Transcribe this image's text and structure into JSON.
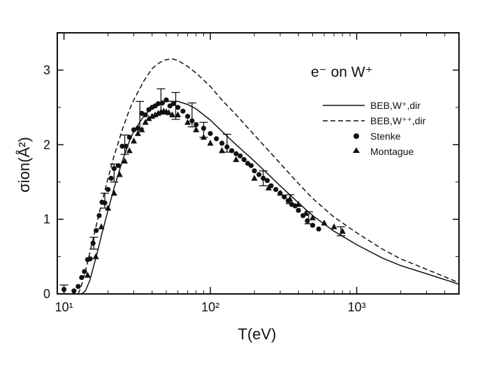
{
  "chart_data": {
    "type": "scatter",
    "title": "",
    "annotation": "e⁻ on W⁺",
    "xlabel": "T(eV)",
    "ylabel": "σion(Å²)",
    "xscale": "log",
    "xlim": [
      9,
      5000
    ],
    "ylim": [
      0,
      3.5
    ],
    "x_ticks": [
      {
        "value": 10,
        "label": "10¹"
      },
      {
        "value": 100,
        "label": "10²"
      },
      {
        "value": 1000,
        "label": "10³"
      }
    ],
    "y_ticks": [
      {
        "value": 0,
        "label": "0"
      },
      {
        "value": 1,
        "label": "1"
      },
      {
        "value": 2,
        "label": "2"
      },
      {
        "value": 3,
        "label": "3"
      }
    ],
    "legend_position": "top-right",
    "series": [
      {
        "name": "BEB,W⁺,dir",
        "style": "solid-line",
        "x": [
          13.2,
          14,
          15,
          16,
          17,
          18,
          20,
          22,
          25,
          28,
          30,
          35,
          40,
          45,
          50,
          60,
          70,
          80,
          100,
          120,
          150,
          200,
          300,
          400,
          500,
          700,
          1000,
          1500,
          2000,
          3000,
          5000
        ],
        "y": [
          0,
          0.04,
          0.18,
          0.38,
          0.58,
          0.78,
          1.12,
          1.42,
          1.78,
          2.05,
          2.18,
          2.38,
          2.5,
          2.56,
          2.58,
          2.58,
          2.54,
          2.48,
          2.33,
          2.18,
          2.0,
          1.78,
          1.45,
          1.22,
          1.05,
          0.84,
          0.66,
          0.48,
          0.38,
          0.27,
          0.13
        ]
      },
      {
        "name": "BEB,W⁺⁺,dir",
        "style": "dashed-line",
        "x": [
          12.5,
          13,
          14,
          15,
          16,
          17,
          18,
          20,
          22,
          25,
          28,
          30,
          35,
          40,
          45,
          50,
          55,
          60,
          70,
          80,
          100,
          120,
          150,
          200,
          300,
          400,
          500,
          700,
          1000,
          1500,
          2000,
          3000,
          5000
        ],
        "y": [
          0,
          0.08,
          0.3,
          0.55,
          0.78,
          1.0,
          1.2,
          1.55,
          1.85,
          2.2,
          2.47,
          2.6,
          2.85,
          3.02,
          3.1,
          3.14,
          3.15,
          3.13,
          3.05,
          2.96,
          2.78,
          2.6,
          2.4,
          2.13,
          1.75,
          1.48,
          1.28,
          1.03,
          0.82,
          0.6,
          0.47,
          0.33,
          0.15
        ]
      },
      {
        "name": "Stenke",
        "style": "circle-markers",
        "x": [
          10,
          11.7,
          12.5,
          13.2,
          13.8,
          14.5,
          15.1,
          15.8,
          16.6,
          17.4,
          18.2,
          19,
          20,
          21,
          22,
          23.5,
          25,
          26.5,
          28,
          30,
          32,
          34,
          36,
          38,
          40,
          42,
          44,
          47,
          50,
          53,
          56,
          60,
          65,
          70,
          75,
          80,
          90,
          100,
          110,
          120,
          130,
          140,
          150,
          160,
          170,
          180,
          190,
          200,
          215,
          230,
          245,
          260,
          280,
          300,
          320,
          340,
          360,
          380,
          400,
          430,
          460,
          500,
          550
        ],
        "y": [
          0.06,
          0.04,
          0.1,
          0.22,
          0.3,
          0.46,
          0.47,
          0.68,
          0.85,
          1.05,
          1.23,
          1.22,
          1.4,
          1.55,
          1.68,
          1.72,
          1.98,
          1.98,
          2.1,
          2.2,
          2.22,
          2.42,
          2.4,
          2.47,
          2.5,
          2.52,
          2.55,
          2.56,
          2.6,
          2.52,
          2.55,
          2.5,
          2.45,
          2.38,
          2.32,
          2.27,
          2.22,
          2.15,
          2.08,
          2.02,
          1.97,
          1.92,
          1.88,
          1.85,
          1.8,
          1.75,
          1.72,
          1.65,
          1.6,
          1.55,
          1.52,
          1.45,
          1.4,
          1.35,
          1.3,
          1.25,
          1.2,
          1.18,
          1.12,
          1.05,
          0.98,
          0.92,
          0.87
        ]
      },
      {
        "name": "Montague",
        "style": "triangle-markers",
        "x": [
          14.5,
          16.5,
          18,
          20,
          22,
          24,
          26,
          28,
          30,
          32,
          34,
          36,
          38,
          40,
          42,
          44,
          46,
          48,
          50,
          52,
          55,
          60,
          70,
          80,
          90,
          100,
          120,
          150,
          200,
          250,
          300,
          350,
          400,
          450,
          500,
          600,
          700,
          800
        ],
        "y": [
          0.25,
          0.5,
          0.9,
          1.15,
          1.35,
          1.6,
          1.78,
          1.92,
          2.05,
          2.15,
          2.2,
          2.3,
          2.35,
          2.38,
          2.4,
          2.42,
          2.44,
          2.45,
          2.44,
          2.43,
          2.4,
          2.4,
          2.3,
          2.2,
          2.1,
          2.02,
          1.92,
          1.8,
          1.55,
          1.42,
          1.35,
          1.27,
          1.2,
          1.08,
          1.02,
          0.95,
          0.9,
          0.84
        ]
      }
    ],
    "error_bars": [
      {
        "x": 10,
        "y": 0.06,
        "err": 0.06
      },
      {
        "x": 16,
        "y": 0.68,
        "err": 0.08
      },
      {
        "x": 19,
        "y": 1.25,
        "err": 0.1
      },
      {
        "x": 22,
        "y": 1.62,
        "err": 0.12
      },
      {
        "x": 26,
        "y": 2.0,
        "err": 0.13
      },
      {
        "x": 33,
        "y": 2.4,
        "err": 0.18
      },
      {
        "x": 46,
        "y": 2.58,
        "err": 0.17
      },
      {
        "x": 58,
        "y": 2.52,
        "err": 0.18
      },
      {
        "x": 75,
        "y": 2.4,
        "err": 0.16
      },
      {
        "x": 90,
        "y": 2.2,
        "err": 0.1
      },
      {
        "x": 130,
        "y": 2.02,
        "err": 0.12
      },
      {
        "x": 230,
        "y": 1.55,
        "err": 0.1
      },
      {
        "x": 350,
        "y": 1.27,
        "err": 0.06
      },
      {
        "x": 470,
        "y": 1.02,
        "err": 0.08
      },
      {
        "x": 780,
        "y": 0.84,
        "err": 0.06
      }
    ]
  }
}
